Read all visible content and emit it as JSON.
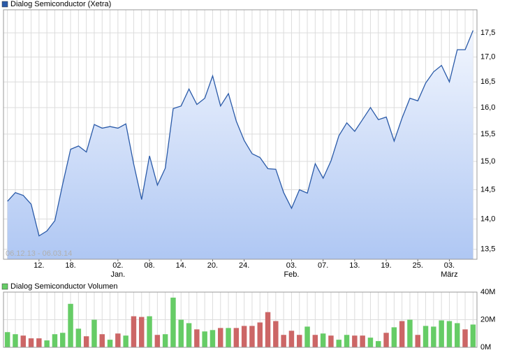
{
  "chart_data": [
    {
      "type": "line",
      "title": "Dialog Semiconductor (Xetra)",
      "date_range": "06.12.13 - 06.03.14",
      "log_scale": true,
      "grid": true,
      "categories": [
        null,
        null,
        null,
        null,
        "12.",
        null,
        null,
        null,
        "18.",
        null,
        null,
        null,
        null,
        null,
        "02.",
        null,
        null,
        null,
        "08.",
        null,
        null,
        null,
        "14.",
        null,
        null,
        null,
        "20.",
        null,
        null,
        null,
        "24.",
        null,
        null,
        null,
        null,
        null,
        "03.",
        null,
        null,
        null,
        "07.",
        null,
        null,
        null,
        "13.",
        null,
        null,
        null,
        "19.",
        null,
        null,
        null,
        "25.",
        null,
        null,
        null,
        "03.",
        null,
        null,
        null
      ],
      "category_months": [
        null,
        null,
        null,
        null,
        null,
        null,
        null,
        null,
        null,
        null,
        null,
        null,
        null,
        null,
        "Jan.",
        null,
        null,
        null,
        null,
        null,
        null,
        null,
        null,
        null,
        null,
        null,
        null,
        null,
        null,
        null,
        null,
        null,
        null,
        null,
        null,
        null,
        "Feb.",
        null,
        null,
        null,
        null,
        null,
        null,
        null,
        null,
        null,
        null,
        null,
        null,
        null,
        null,
        null,
        null,
        null,
        null,
        null,
        "März",
        null,
        null,
        null
      ],
      "series": [
        {
          "name": "Dialog Semiconductor (Xetra)",
          "color": "#2a5aa8",
          "values": [
            14.3,
            14.45,
            14.4,
            14.25,
            13.72,
            13.8,
            13.97,
            14.6,
            15.22,
            15.28,
            15.17,
            15.68,
            15.61,
            15.64,
            15.61,
            15.69,
            14.95,
            14.33,
            15.1,
            14.58,
            14.88,
            15.98,
            16.03,
            16.36,
            16.06,
            16.18,
            16.62,
            16.03,
            16.27,
            15.74,
            15.38,
            15.14,
            15.07,
            14.87,
            14.86,
            14.45,
            14.18,
            14.5,
            14.44,
            14.96,
            14.7,
            15.01,
            15.47,
            15.71,
            15.55,
            15.77,
            16.0,
            15.77,
            15.82,
            15.37,
            15.8,
            16.18,
            16.13,
            16.48,
            16.7,
            16.83,
            16.5,
            17.15,
            17.15,
            17.55
          ]
        }
      ],
      "ylim": [
        13.34,
        17.99
      ],
      "yticks": [
        {
          "value": 13.5,
          "label": "13,5"
        },
        {
          "value": 14,
          "label": "14,0"
        },
        {
          "value": 14.5,
          "label": "14,5"
        },
        {
          "value": 15,
          "label": "15,0"
        },
        {
          "value": 15.5,
          "label": "15,5"
        },
        {
          "value": 16,
          "label": "16,0"
        },
        {
          "value": 16.5,
          "label": "16,5"
        },
        {
          "value": 17,
          "label": "17,0"
        },
        {
          "value": 17.5,
          "label": "17,5"
        }
      ]
    },
    {
      "type": "bar",
      "title": "Dialog Semiconductor Volumen",
      "grid": true,
      "series": [
        {
          "name": "Dialog Semiconductor Volumen",
          "color": "#66cc66",
          "values": [
            11,
            9.5,
            8.5,
            6.5,
            6.5,
            5,
            9.5,
            10.5,
            31.5,
            13.5,
            8,
            20,
            9.5,
            5.5,
            10,
            8.5,
            22.5,
            22,
            22.5,
            9,
            9.5,
            36,
            20,
            17.5,
            13,
            11.5,
            12.5,
            14,
            14,
            14,
            15.5,
            15.5,
            18,
            25.5,
            19,
            9,
            12,
            9,
            15,
            9,
            10,
            8.5,
            5.5,
            9,
            8.5,
            8.5,
            7,
            4.5,
            10.5,
            14.5,
            19,
            20,
            9,
            15.5,
            15,
            19.5,
            19,
            17.5,
            13,
            16.5
          ],
          "colors": [
            "#66cc66",
            "#66cc66",
            "#cc6666",
            "#cc6666",
            "#cc6666",
            "#66cc66",
            "#66cc66",
            "#66cc66",
            "#66cc66",
            "#66cc66",
            "#cc6666",
            "#66cc66",
            "#cc6666",
            "#66cc66",
            "#cc6666",
            "#66cc66",
            "#cc6666",
            "#cc6666",
            "#66cc66",
            "#cc6666",
            "#66cc66",
            "#66cc66",
            "#66cc66",
            "#66cc66",
            "#cc6666",
            "#66cc66",
            "#66cc66",
            "#cc6666",
            "#66cc66",
            "#cc6666",
            "#cc6666",
            "#cc6666",
            "#cc6666",
            "#cc6666",
            "#cc6666",
            "#cc6666",
            "#cc6666",
            "#cc6666",
            "#66cc66",
            "#cc6666",
            "#66cc66",
            "#cc6666",
            "#66cc66",
            "#66cc66",
            "#cc6666",
            "#cc6666",
            "#66cc66",
            "#66cc66",
            "#cc6666",
            "#66cc66",
            "#cc6666",
            "#66cc66",
            "#cc6666",
            "#66cc66",
            "#66cc66",
            "#66cc66",
            "#66cc66",
            "#66cc66",
            "#cc6666",
            "#66cc66"
          ]
        }
      ],
      "ylim": [
        0,
        40
      ],
      "yticks": [
        {
          "value": 0,
          "label": "0M"
        },
        {
          "value": 20,
          "label": "20M"
        },
        {
          "value": 40,
          "label": "40M"
        }
      ]
    }
  ]
}
